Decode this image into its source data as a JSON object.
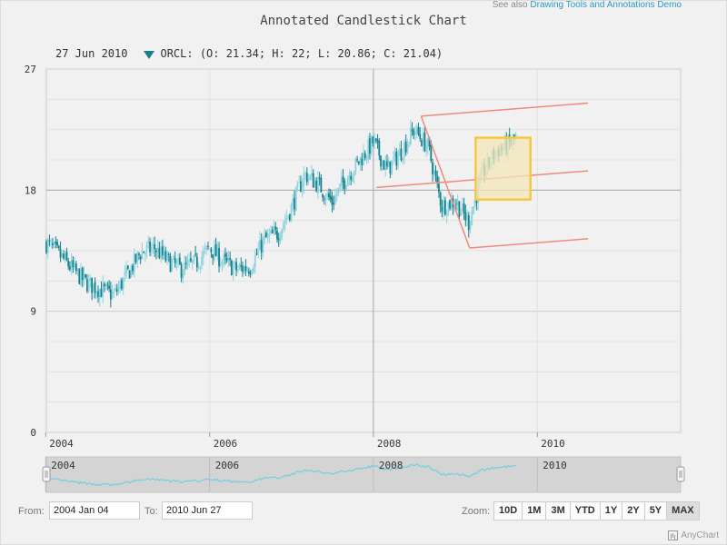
{
  "see_also": {
    "prefix": "See also",
    "link_text": "Drawing Tools and Annotations Demo"
  },
  "legend": {
    "date": "27 Jun 2010",
    "text": "ORCL: (O: 21.34; H: 22; L: 20.86; C: 21.04)"
  },
  "controls": {
    "from_label": "From:",
    "from_value": "2004 Jan 04",
    "to_label": "To:",
    "to_value": "2010 Jun 27",
    "zoom_label": "Zoom:",
    "zoom_buttons": [
      "10D",
      "1M",
      "3M",
      "YTD",
      "1Y",
      "2Y",
      "5Y",
      "MAX"
    ],
    "active_zoom": "MAX"
  },
  "credit": "AnyChart",
  "colors": {
    "rising": "#8dd3de",
    "falling": "#14818d",
    "annotation_line": "#ef8a7c",
    "annotation_box_fill": "#f4e6b8",
    "annotation_box_stroke": "#f5c842",
    "scroller_line": "#72cfe0"
  },
  "chart_data": {
    "type": "candlestick",
    "title": "Annotated Candlestick Chart",
    "series_name": "ORCL",
    "x_range": [
      "2004-01-04",
      "2010-06-27"
    ],
    "ylim": [
      0,
      27
    ],
    "y_ticks": [
      0,
      9,
      18,
      27
    ],
    "x_ticks": [
      "2004",
      "2006",
      "2008",
      "2010"
    ],
    "crosshair": {
      "date": "2008-01-01",
      "value": 18
    },
    "close_path": [
      [
        "2004-01",
        14.1
      ],
      [
        "2004-03",
        13.2
      ],
      [
        "2004-05",
        12.1
      ],
      [
        "2004-07",
        11.1
      ],
      [
        "2004-09",
        10.6
      ],
      [
        "2004-11",
        10.2
      ],
      [
        "2005-01",
        11.8
      ],
      [
        "2005-03",
        13.4
      ],
      [
        "2005-05",
        13.7
      ],
      [
        "2005-07",
        12.7
      ],
      [
        "2005-09",
        12.1
      ],
      [
        "2005-11",
        12.6
      ],
      [
        "2006-01",
        13.7
      ],
      [
        "2006-03",
        12.7
      ],
      [
        "2006-05",
        12.1
      ],
      [
        "2006-07",
        12.3
      ],
      [
        "2006-09",
        14.3
      ],
      [
        "2006-11",
        14.8
      ],
      [
        "2007-01",
        16.7
      ],
      [
        "2007-03",
        19.2
      ],
      [
        "2007-05",
        18.4
      ],
      [
        "2007-07",
        17.1
      ],
      [
        "2007-09",
        18.9
      ],
      [
        "2007-11",
        20.2
      ],
      [
        "2008-01",
        21.6
      ],
      [
        "2008-03",
        19.5
      ],
      [
        "2008-05",
        20.8
      ],
      [
        "2008-07",
        22.5
      ],
      [
        "2008-09",
        21.2
      ],
      [
        "2008-11",
        16.8
      ],
      [
        "2009-01",
        17.2
      ],
      [
        "2009-03",
        15.6
      ],
      [
        "2009-05",
        19.2
      ],
      [
        "2009-07",
        20.9
      ],
      [
        "2009-09",
        21.4
      ],
      [
        "2009-10",
        22.0
      ]
    ],
    "annotations": {
      "andrews_pitchfork": {
        "pivot": [
          "2008-01-15",
          18.2
        ],
        "upper": [
          "2008-08-01",
          23.5
        ],
        "lower": [
          "2009-03-05",
          13.7
        ],
        "extend_to": "2010-08-15"
      },
      "rectangle": {
        "x": [
          "2009-04-01",
          "2009-12-01"
        ],
        "y": [
          17.3,
          21.9
        ]
      }
    }
  }
}
